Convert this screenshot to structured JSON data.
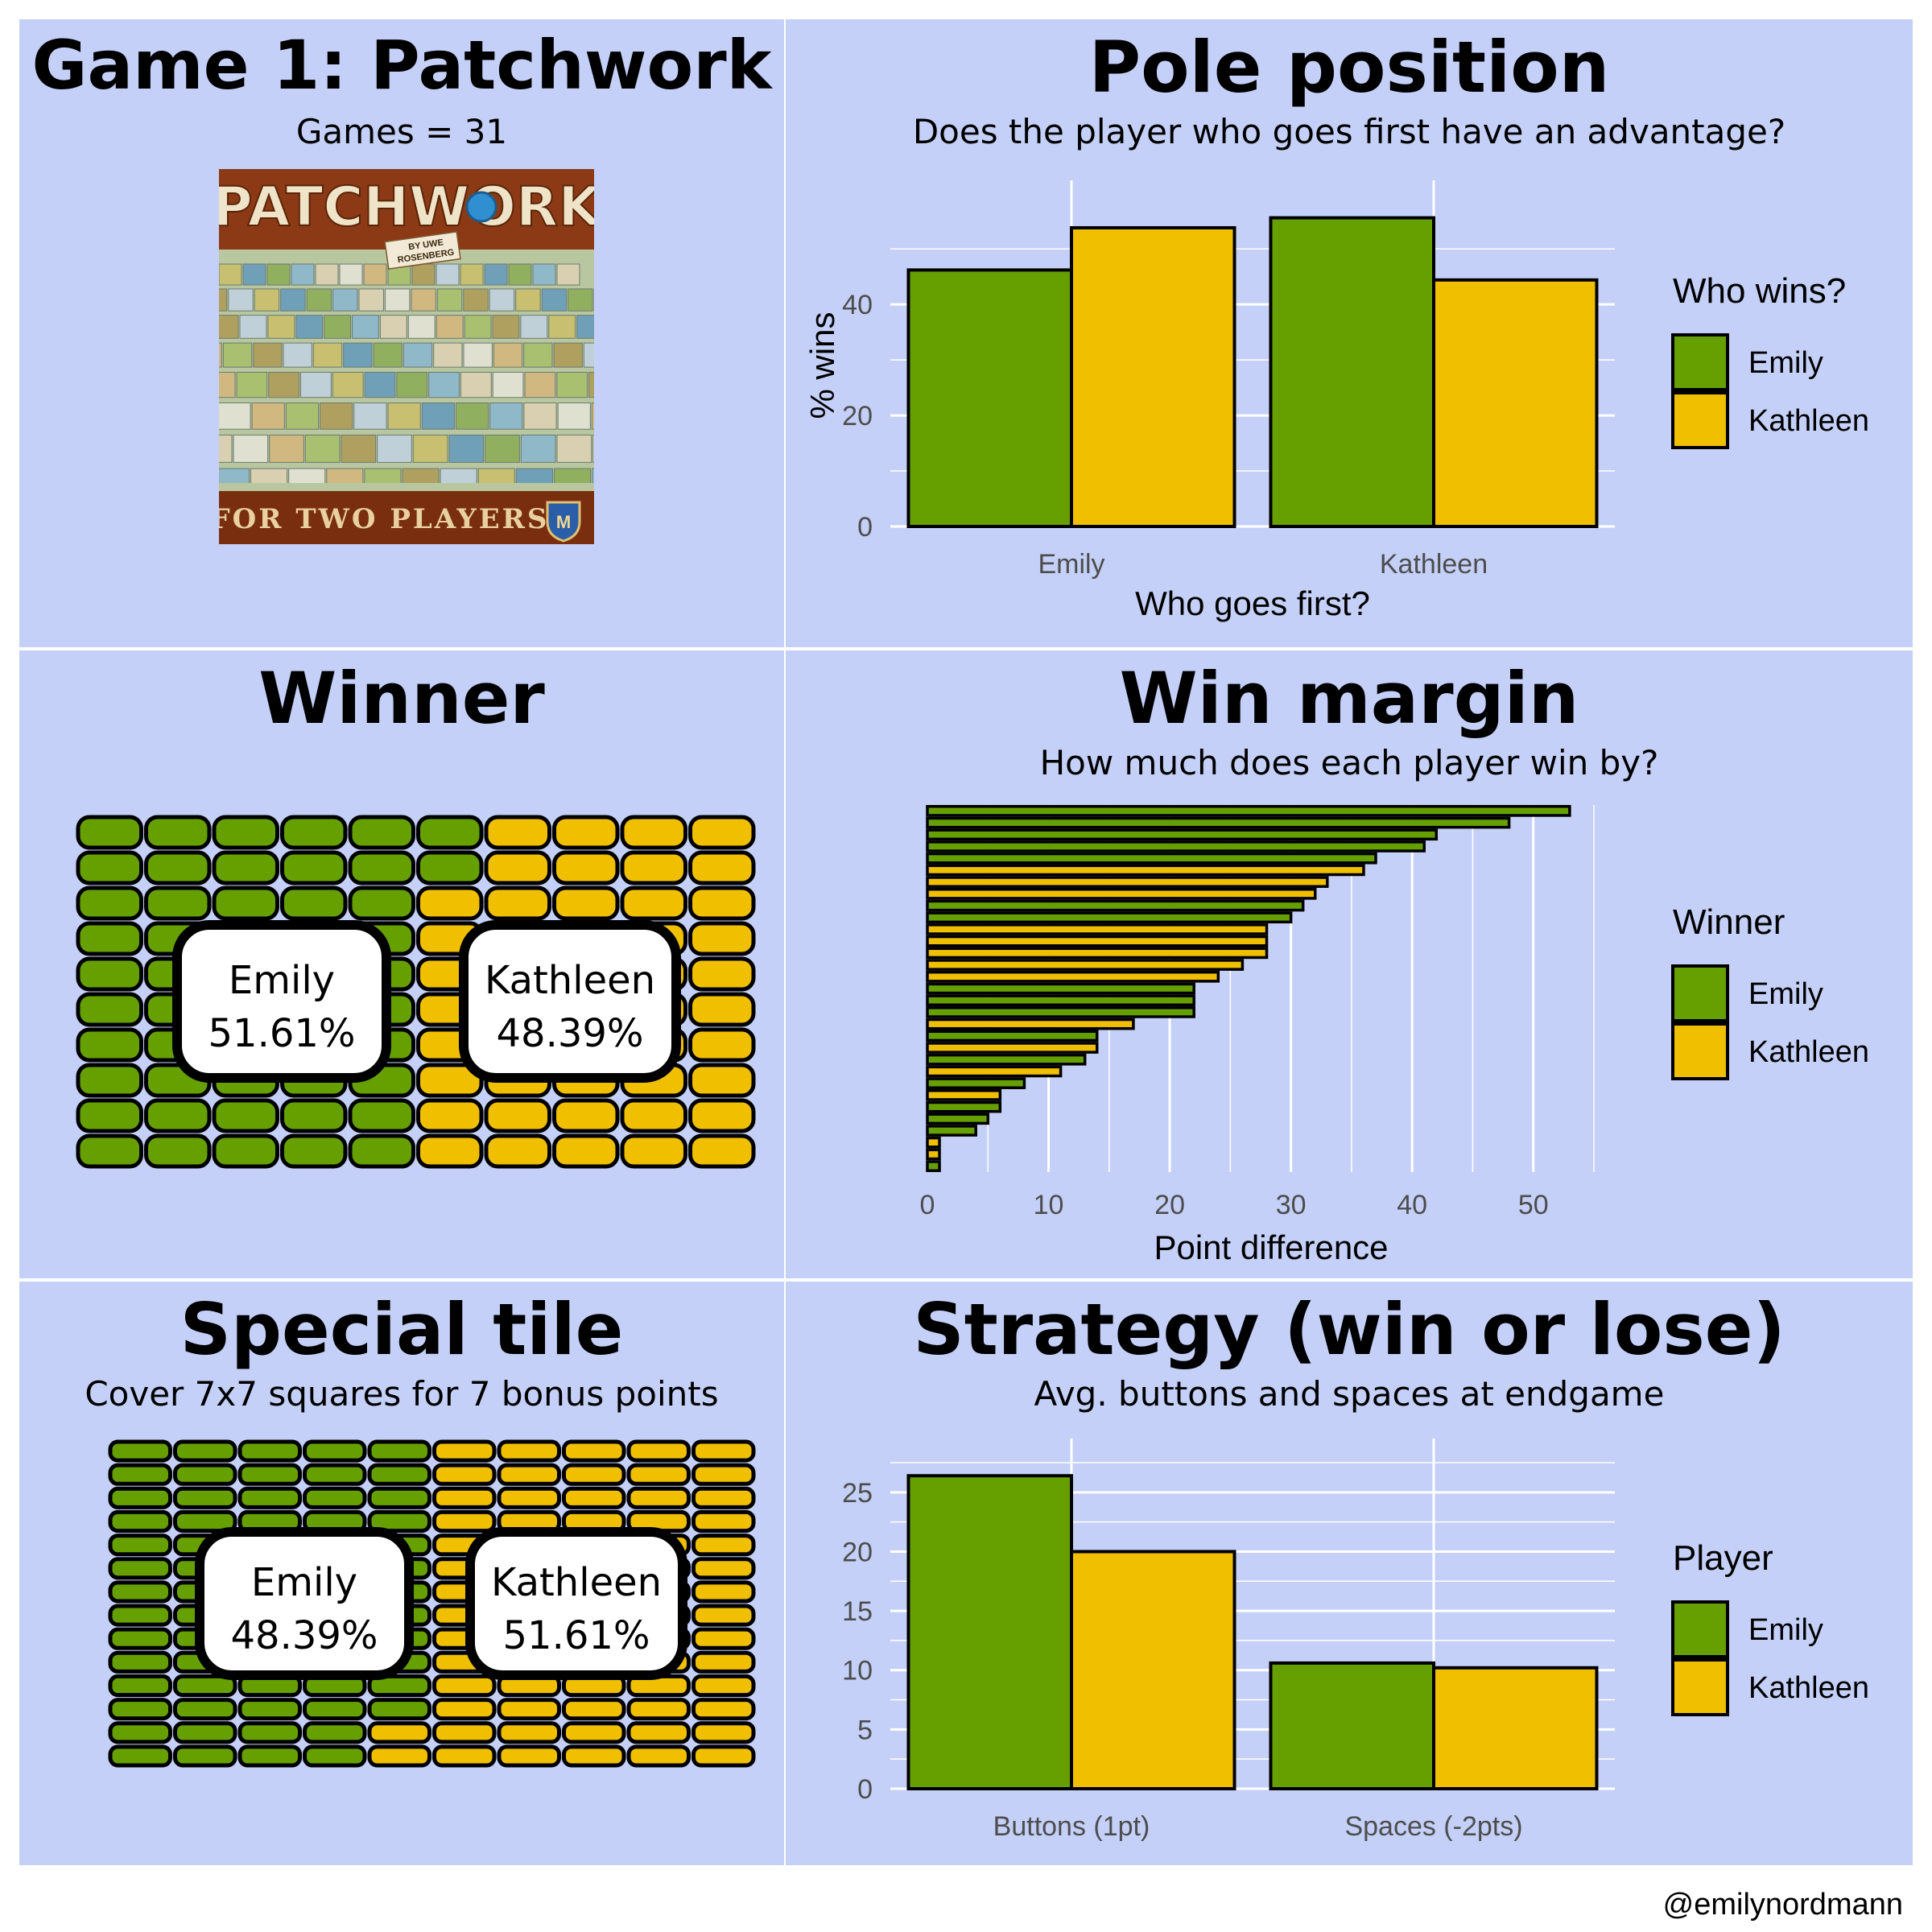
{
  "colors": {
    "emily": "#66a000",
    "kathleen": "#f0bf00",
    "panel_bg": "#c5d0f8",
    "grid": "#ffffff"
  },
  "panel1": {
    "title": "Game 1: Patchwork",
    "subtitle": "Games = 31",
    "box_art": {
      "title": "PATCHWORK",
      "byline_1": "BY UWE",
      "byline_2": "ROSENBERG",
      "bottom": "FOR TWO PLAYERS",
      "badge": "M"
    }
  },
  "panel5": {
    "title": "Special tile",
    "subtitle": "Cover 7x7 squares for 7 bonus points"
  },
  "credit": "@emilynordmann",
  "chart_data": [
    {
      "id": "pole",
      "type": "bar",
      "title": "Pole position",
      "subtitle": "Does the player who goes first have an advantage?",
      "xlabel": "Who goes first?",
      "ylabel": "% wins",
      "categories": [
        "Emily",
        "Kathleen"
      ],
      "series": [
        {
          "name": "Emily",
          "values": [
            46.2,
            55.6
          ]
        },
        {
          "name": "Kathleen",
          "values": [
            53.8,
            44.4
          ]
        }
      ],
      "ylim": [
        0,
        58
      ],
      "yticks": [
        0,
        20,
        40
      ],
      "legend_title": "Who wins?",
      "legend_position": "right",
      "grid": true
    },
    {
      "id": "winner",
      "type": "waffle",
      "title": "Winner",
      "categories": [
        "Emily",
        "Kathleen"
      ],
      "values": [
        51.61,
        48.39
      ],
      "labels": [
        "51.61%",
        "48.39%"
      ],
      "grid_rows": 10,
      "grid_cols": 10
    },
    {
      "id": "margin",
      "type": "bar",
      "orientation": "horizontal",
      "title": "Win margin",
      "subtitle": "How much does each player win by?",
      "xlabel": "Point difference",
      "ylabel": "",
      "xlim": [
        0,
        55
      ],
      "xticks": [
        0,
        10,
        20,
        30,
        40,
        50
      ],
      "legend_title": "Winner",
      "legend_position": "right",
      "grid": true,
      "games_sorted_desc": [
        {
          "winner": "Emily",
          "margin": 53
        },
        {
          "winner": "Emily",
          "margin": 48
        },
        {
          "winner": "Emily",
          "margin": 42
        },
        {
          "winner": "Emily",
          "margin": 41
        },
        {
          "winner": "Emily",
          "margin": 37
        },
        {
          "winner": "Kathleen",
          "margin": 36
        },
        {
          "winner": "Kathleen",
          "margin": 33
        },
        {
          "winner": "Kathleen",
          "margin": 32
        },
        {
          "winner": "Emily",
          "margin": 31
        },
        {
          "winner": "Emily",
          "margin": 30
        },
        {
          "winner": "Kathleen",
          "margin": 28
        },
        {
          "winner": "Kathleen",
          "margin": 28
        },
        {
          "winner": "Kathleen",
          "margin": 28
        },
        {
          "winner": "Kathleen",
          "margin": 26
        },
        {
          "winner": "Kathleen",
          "margin": 24
        },
        {
          "winner": "Emily",
          "margin": 22
        },
        {
          "winner": "Emily",
          "margin": 22
        },
        {
          "winner": "Emily",
          "margin": 22
        },
        {
          "winner": "Kathleen",
          "margin": 17
        },
        {
          "winner": "Emily",
          "margin": 14
        },
        {
          "winner": "Kathleen",
          "margin": 14
        },
        {
          "winner": "Emily",
          "margin": 13
        },
        {
          "winner": "Kathleen",
          "margin": 11
        },
        {
          "winner": "Emily",
          "margin": 8
        },
        {
          "winner": "Kathleen",
          "margin": 6
        },
        {
          "winner": "Emily",
          "margin": 6
        },
        {
          "winner": "Emily",
          "margin": 5
        },
        {
          "winner": "Emily",
          "margin": 4
        },
        {
          "winner": "Kathleen",
          "margin": 1
        },
        {
          "winner": "Kathleen",
          "margin": 1
        },
        {
          "winner": "Emily",
          "margin": 1
        }
      ]
    },
    {
      "id": "special",
      "type": "waffle",
      "title": "Special tile",
      "categories": [
        "Emily",
        "Kathleen"
      ],
      "values": [
        48.39,
        51.61
      ],
      "labels": [
        "48.39%",
        "51.61%"
      ],
      "grid_rows": 10,
      "grid_cols": 10
    },
    {
      "id": "strategy",
      "type": "bar",
      "title": "Strategy (win or lose)",
      "subtitle": "Avg. buttons and spaces at endgame",
      "xlabel": "",
      "ylabel": "",
      "categories": [
        "Buttons (1pt)",
        "Spaces (-2pts)"
      ],
      "series": [
        {
          "name": "Emily",
          "values": [
            26.4,
            10.6
          ]
        },
        {
          "name": "Kathleen",
          "values": [
            20.0,
            10.2
          ]
        }
      ],
      "ylim": [
        0,
        27.5
      ],
      "yticks": [
        0,
        5,
        10,
        15,
        20,
        25
      ],
      "legend_title": "Player",
      "legend_position": "right",
      "grid": true
    }
  ]
}
